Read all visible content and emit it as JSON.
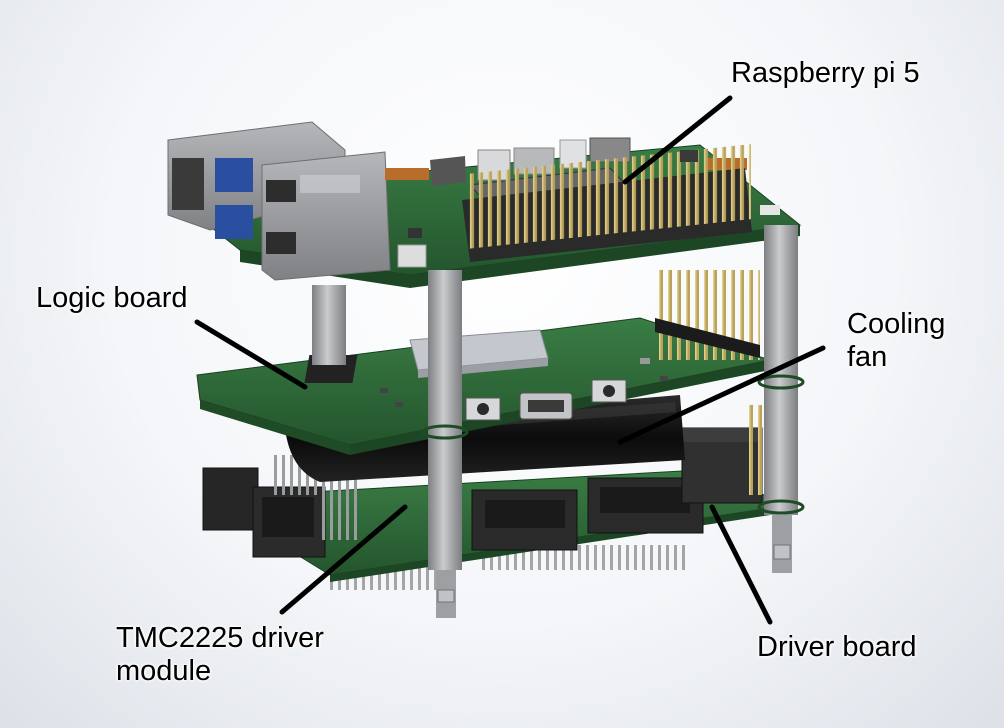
{
  "labels": {
    "raspberry_pi": "Raspberry pi 5",
    "logic_board": "Logic board",
    "cooling_fan_line1": "Cooling",
    "cooling_fan_line2": "fan",
    "tmc_line1": "TMC2225 driver",
    "tmc_line2": "module",
    "driver_board": "Driver board"
  },
  "colors": {
    "pcb_green": "#2f6b3a",
    "pcb_green_dark": "#1e4a27",
    "standoff_gray": "#a7a9ab",
    "pin_gold": "#b9a25a",
    "connector_black": "#2a2a2a",
    "leader_line": "#000000"
  }
}
